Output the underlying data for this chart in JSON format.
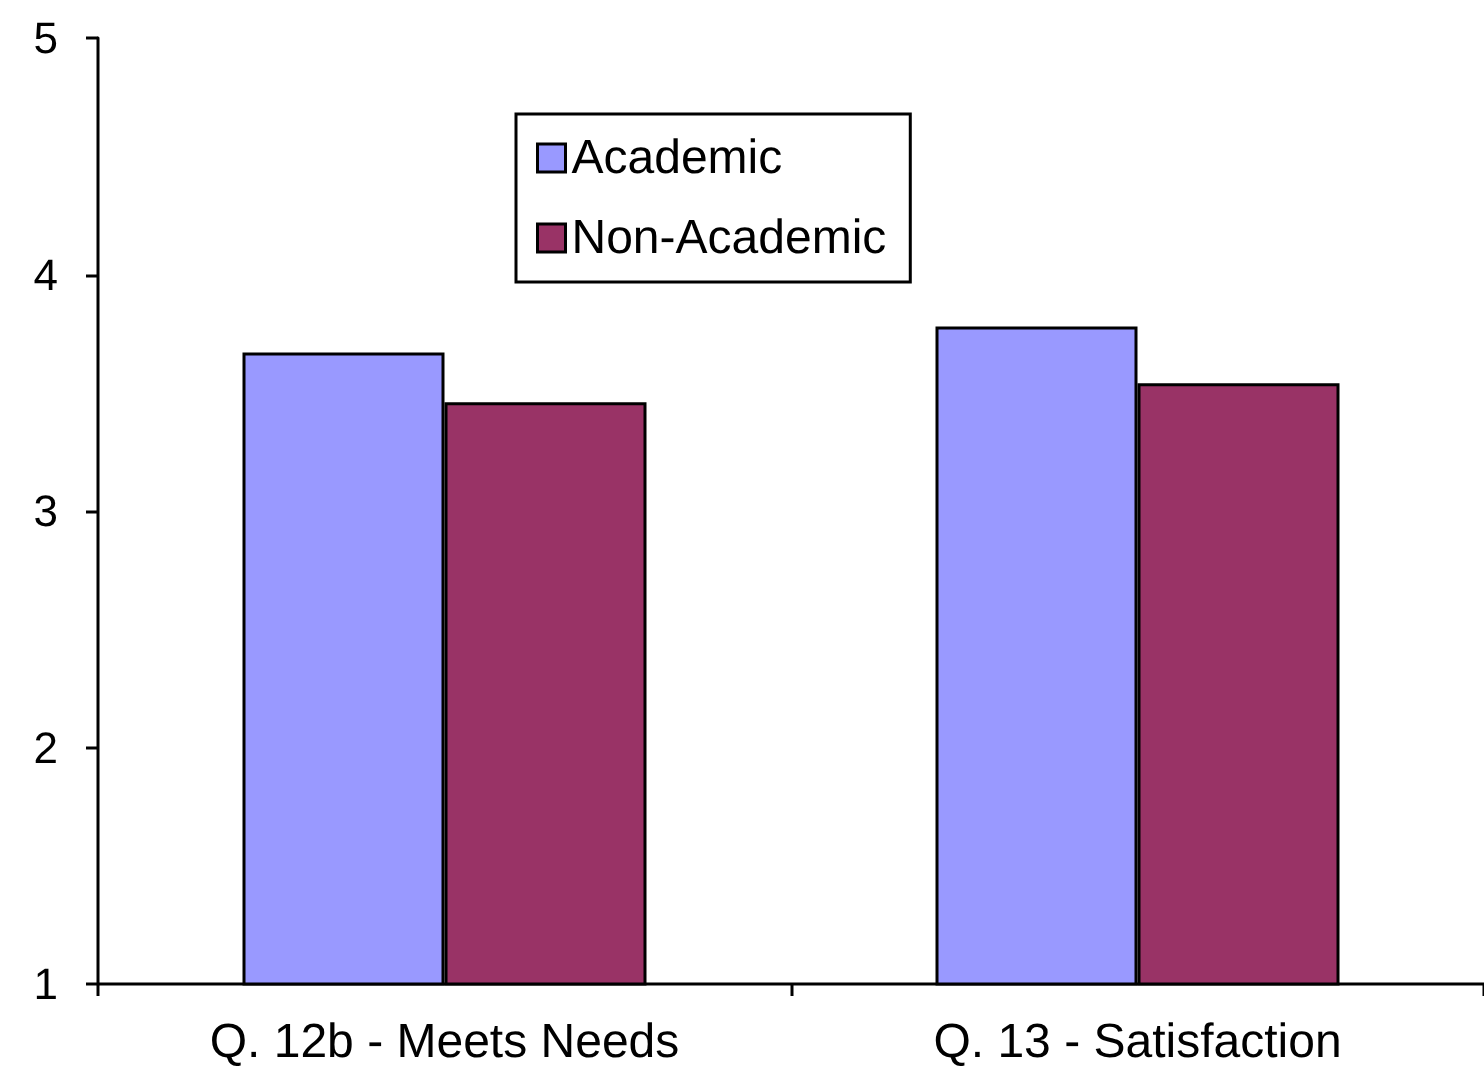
{
  "chart_data": {
    "type": "bar",
    "categories": [
      "Q. 12b - Meets Needs",
      "Q. 13 - Satisfaction"
    ],
    "series": [
      {
        "name": "Academic",
        "color": "#9999ff",
        "values": [
          3.67,
          3.78
        ]
      },
      {
        "name": "Non-Academic",
        "color": "#993366",
        "values": [
          3.46,
          3.54
        ]
      }
    ],
    "ylim": [
      1,
      5
    ],
    "yticks": [
      1,
      2,
      3,
      4,
      5
    ],
    "grid": false,
    "legend": "top"
  }
}
